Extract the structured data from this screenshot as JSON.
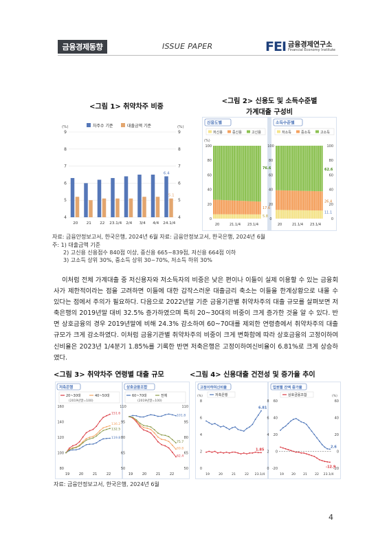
{
  "header": {
    "tag": "금융경제동향",
    "paper": "ISSUE PAPER",
    "logo_mark": "FEI",
    "logo_ko": "금융경제연구소",
    "logo_en": "Financial Economy Institute"
  },
  "fig1": {
    "caption": "<그림 1> 취약차주 비중",
    "legend": [
      "차주수 기준",
      "대출금액 기준"
    ],
    "unit": "(%)",
    "chart_data": {
      "type": "bar",
      "categories": [
        "20",
        "21",
        "22",
        "23.1/4",
        "2/4",
        "3/4",
        "4/4",
        "24.1/4"
      ],
      "series": [
        {
          "name": "차주수 기준",
          "values": [
            6.3,
            6.0,
            6.2,
            6.3,
            6.4,
            6.5,
            6.5,
            6.4
          ]
        },
        {
          "name": "대출금액 기준",
          "values": [
            5.2,
            5.0,
            5.1,
            5.1,
            5.1,
            5.2,
            5.2,
            5.1
          ]
        }
      ],
      "ylim": [
        4,
        9
      ],
      "yticks": [
        "4",
        "5",
        "6",
        "7",
        "8",
        "9"
      ],
      "annotations": [
        "6.4",
        "5.1"
      ]
    }
  },
  "fig2": {
    "caption_l1": "<그림 2> 신용도 및 소득수준별",
    "caption_l2": "가계대출 구성비",
    "panel_left_title": "신용도별",
    "panel_right_title": "소득수준별",
    "legend_left": [
      "저신용",
      "중신용",
      "고신용"
    ],
    "legend_right": [
      "저소득",
      "중소득",
      "고소득"
    ],
    "unit": "(%)",
    "chart_data": {
      "type": "bar",
      "x_left": [
        "20",
        "21.1/4",
        "23.1/4"
      ],
      "x_right": [
        "20",
        "21.1/4",
        "23.1/4"
      ],
      "yticks": [
        "0",
        "20",
        "40",
        "60",
        "80",
        "100"
      ],
      "annotations_left": [
        "76.6",
        "17.6",
        "5.8"
      ],
      "annotations_right": [
        "62.6",
        "26.4",
        "11.1"
      ]
    }
  },
  "sources_mid": "자료: 금융안정보고서, 한국은행, 2024년 6월  자료: 금융안정보고서, 한국은행, 2024년 6월",
  "notes": [
    "주: 1) 대출금액 기준",
    "2) 고신용 신용점수 840점 이상, 중신용 665~839점, 저신용 664점 이하",
    "3) 고소득 상위 30%, 중소득 상위 30~70%, 저소득 하위 30%"
  ],
  "body_text": "이처럼 전체 가계대출 중 저신용자와 저소득자의 비중은 낮은 편이나 이들이 실제 이용할 수 있는 금융회사가 제한적이라는 점을 고려하면 이들에 대한 갑작스러운 대출금리 축소는 이들을 한계상황으로 내몰 수 있다는 점에서 주의가 필요하다. 다음으로 2022년말 기준 금융기관별 취약차주의 대출 규모를 살펴보면 저축은행의 2019년말 대비 32.5% 증가하였으며 특히 20~30대의 비중이 크게 증가한 것을 알 수 있다. 반면 상호금융의 경우 2019년말에 비해 24.3% 감소하여 60~70대를 제외한 연령층에서 취약차주의 대출규모가 크게 감소하였다. 이처럼 금융기관별 취약차주의 비중이 크게 변화함에 따라 상호금융의 고정이하여신비율은 2023년 1/4분기 1.85%를 기록한 반면 저축은행은 고정이하여신비율이 6.81%로 크게 상승하였다.",
  "fig3": {
    "caption": "<그림 3> 취약차주 연령별 대출 규모",
    "panel_left_title": "저축은행",
    "panel_right_title": "상호금융조합",
    "legend": [
      "20~30대",
      "40~50대",
      "60~70대",
      "전체"
    ],
    "legend_note_left": "(2019년말=100)",
    "legend_note_right": "(2019년말=100)",
    "chart_data": {
      "type": "line",
      "x": [
        "19",
        "20",
        "21",
        "22",
        "19",
        "20",
        "21",
        "22"
      ],
      "left_yticks": [
        "80",
        "100",
        "120",
        "140",
        "160"
      ],
      "right_yticks": [
        "50",
        "65",
        "80",
        "95",
        "110"
      ],
      "annotations_left": [
        "151.6",
        "136.2",
        "132.5",
        "119.8"
      ],
      "annotations_right": [
        "101.8",
        "75.7",
        "69.8",
        "62.4"
      ]
    }
  },
  "fig4": {
    "caption": "<그림 4> 신용대출 건전성 및 증가율 추이",
    "panel_left_title": "고정이하여신비율",
    "panel_right_title": "업권별 잔액 증가율",
    "legend_left": [
      "저축은행"
    ],
    "legend_right": [
      "상호금융조합"
    ],
    "unit": "(%)",
    "chart_data": {
      "type": "line",
      "x": [
        "19",
        "20",
        "21",
        "22",
        "23.1/4"
      ],
      "left_yticks": [
        "0",
        "2",
        "4",
        "6",
        "8"
      ],
      "right_yticks": [
        "-20",
        "0",
        "20",
        "40",
        "60"
      ],
      "annotations": [
        "6.81",
        "1.85",
        "2.6",
        "-12.9"
      ]
    }
  },
  "source_bottom": "자료: 금융안정보고서, 한국은행, 2024년 6월",
  "page_number": "4",
  "colors": {
    "bar_blue": "#5577b8",
    "bar_orange": "#e3a66f",
    "green": "#8cc152",
    "orange": "#f4a15e",
    "blue": "#4a73b8",
    "red": "#d9363e",
    "panel": "#d9e2ef"
  }
}
